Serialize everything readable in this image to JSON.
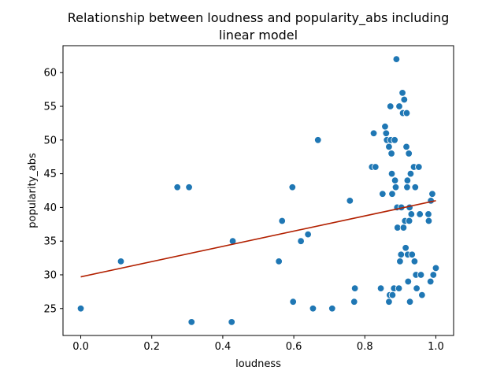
{
  "chart_data": {
    "type": "scatter",
    "title_lines": [
      "Relationship between loudness and popularity_abs including",
      "linear model"
    ],
    "xlabel": "loudness",
    "ylabel": "popularity_abs",
    "xlim": [
      -0.05,
      1.05
    ],
    "ylim": [
      21.0,
      64.0
    ],
    "xticks": [
      0.0,
      0.2,
      0.4,
      0.6,
      0.8,
      1.0
    ],
    "xtick_labels": [
      "0.0",
      "0.2",
      "0.4",
      "0.6",
      "0.8",
      "1.0"
    ],
    "yticks": [
      25,
      30,
      35,
      40,
      45,
      50,
      55,
      60
    ],
    "ytick_labels": [
      "25",
      "30",
      "35",
      "40",
      "45",
      "50",
      "55",
      "60"
    ],
    "grid": false,
    "colors": {
      "points": "#1f77b4",
      "point_edge": "#ffffff",
      "fit_line": "#b22000"
    },
    "points": [
      [
        0.0,
        25
      ],
      [
        0.113,
        32
      ],
      [
        0.272,
        43
      ],
      [
        0.305,
        43
      ],
      [
        0.312,
        23
      ],
      [
        0.425,
        23
      ],
      [
        0.428,
        35
      ],
      [
        0.558,
        32
      ],
      [
        0.567,
        38
      ],
      [
        0.596,
        43
      ],
      [
        0.598,
        26
      ],
      [
        0.62,
        35
      ],
      [
        0.64,
        36
      ],
      [
        0.654,
        25
      ],
      [
        0.668,
        50
      ],
      [
        0.708,
        25
      ],
      [
        0.758,
        41
      ],
      [
        0.77,
        26
      ],
      [
        0.772,
        28
      ],
      [
        0.82,
        46
      ],
      [
        0.825,
        51
      ],
      [
        0.83,
        46
      ],
      [
        0.845,
        28
      ],
      [
        0.85,
        42
      ],
      [
        0.857,
        52
      ],
      [
        0.86,
        51
      ],
      [
        0.862,
        50
      ],
      [
        0.868,
        49
      ],
      [
        0.87,
        27
      ],
      [
        0.868,
        26
      ],
      [
        0.872,
        55
      ],
      [
        0.873,
        50
      ],
      [
        0.875,
        48
      ],
      [
        0.876,
        45
      ],
      [
        0.877,
        42
      ],
      [
        0.878,
        27
      ],
      [
        0.882,
        28
      ],
      [
        0.884,
        50
      ],
      [
        0.885,
        44
      ],
      [
        0.887,
        43
      ],
      [
        0.889,
        62
      ],
      [
        0.891,
        40
      ],
      [
        0.892,
        37
      ],
      [
        0.896,
        28
      ],
      [
        0.897,
        55
      ],
      [
        0.899,
        32
      ],
      [
        0.902,
        33
      ],
      [
        0.903,
        40
      ],
      [
        0.906,
        57
      ],
      [
        0.907,
        54
      ],
      [
        0.909,
        37
      ],
      [
        0.911,
        56
      ],
      [
        0.913,
        38
      ],
      [
        0.915,
        34
      ],
      [
        0.917,
        49
      ],
      [
        0.918,
        54
      ],
      [
        0.919,
        43
      ],
      [
        0.92,
        44
      ],
      [
        0.921,
        33
      ],
      [
        0.922,
        29
      ],
      [
        0.924,
        48
      ],
      [
        0.925,
        38
      ],
      [
        0.926,
        40
      ],
      [
        0.927,
        26
      ],
      [
        0.929,
        45
      ],
      [
        0.931,
        39
      ],
      [
        0.933,
        33
      ],
      [
        0.938,
        46
      ],
      [
        0.94,
        32
      ],
      [
        0.942,
        43
      ],
      [
        0.944,
        30
      ],
      [
        0.946,
        28
      ],
      [
        0.952,
        46
      ],
      [
        0.955,
        39
      ],
      [
        0.958,
        30
      ],
      [
        0.961,
        27
      ],
      [
        0.979,
        39
      ],
      [
        0.98,
        38
      ],
      [
        0.985,
        29
      ],
      [
        0.986,
        41
      ],
      [
        0.99,
        42
      ],
      [
        0.993,
        30
      ],
      [
        1.0,
        31
      ]
    ],
    "fit_line": {
      "x": [
        0.0,
        1.0
      ],
      "y": [
        29.7,
        41.0
      ]
    }
  }
}
